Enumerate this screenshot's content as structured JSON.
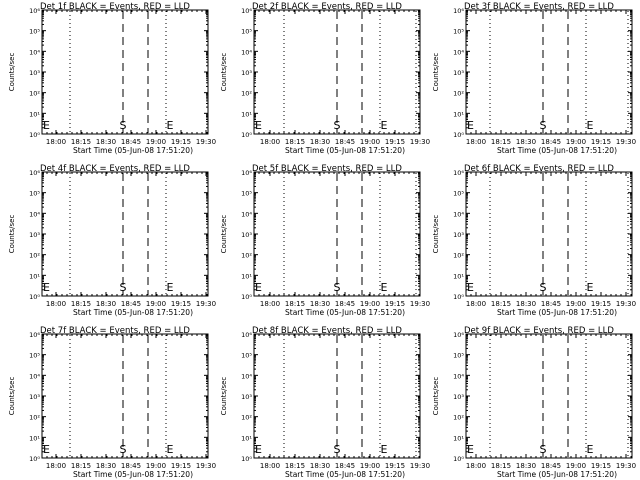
{
  "colors": {
    "background": "#ffffff",
    "foreground": "#000000"
  },
  "panels": [
    {
      "title": "Det 1f BLACK = Events, RED = LLD",
      "xlabel": "Start Time (05-Jun-08 17:51:20)",
      "ylabel": "Counts/sec"
    },
    {
      "title": "Det 2f BLACK = Events, RED = LLD",
      "xlabel": "Start Time (05-Jun-08 17:51:20)",
      "ylabel": "Counts/sec"
    },
    {
      "title": "Det 3f BLACK = Events, RED = LLD",
      "xlabel": "Start Time (05-Jun-08 17:51:20)",
      "ylabel": "Counts/sec"
    },
    {
      "title": "Det 4f BLACK = Events, RED = LLD",
      "xlabel": "Start Time (05-Jun-08 17:51:20)",
      "ylabel": "Counts/sec"
    },
    {
      "title": "Det 5f BLACK = Events, RED = LLD",
      "xlabel": "Start Time (05-Jun-08 17:51:20)",
      "ylabel": "Counts/sec"
    },
    {
      "title": "Det 6f BLACK = Events, RED = LLD",
      "xlabel": "Start Time (05-Jun-08 17:51:20)",
      "ylabel": "Counts/sec"
    },
    {
      "title": "Det 7f BLACK = Events, RED = LLD",
      "xlabel": "Start Time (05-Jun-08 17:51:20)",
      "ylabel": "Counts/sec"
    },
    {
      "title": "Det 8f BLACK = Events, RED = LLD",
      "xlabel": "Start Time (05-Jun-08 17:51:20)",
      "ylabel": "Counts/sec"
    },
    {
      "title": "Det 9f BLACK = Events, RED = LLD",
      "xlabel": "Start Time (05-Jun-08 17:51:20)",
      "ylabel": "Counts/sec"
    }
  ],
  "chart_data": {
    "type": "line",
    "layout": "3x3 small multiples",
    "x_axis": {
      "unit": "minutes after 17:51:20",
      "range": [
        0,
        40
      ],
      "ticks": [
        {
          "label": "18:00",
          "value": 8.67
        },
        {
          "label": "18:15",
          "value": 23.67
        },
        {
          "label": "18:30",
          "value": 38.67
        },
        {
          "label": "18:45",
          "value": 53.67
        },
        {
          "label": "19:00",
          "value": 68.67
        },
        {
          "label": "19:15",
          "value": 83.67
        },
        {
          "label": "19:30",
          "value": 98.67
        }
      ]
    },
    "y_axis": {
      "scale": "log",
      "range_exponent": [
        0,
        6
      ],
      "tick_labels": [
        "10⁰",
        "10¹",
        "10²",
        "10³",
        "10⁴",
        "10⁵",
        "10⁶"
      ]
    },
    "markers": [
      {
        "label": "S",
        "style": "dashed"
      },
      {
        "label": "E",
        "style": "dotted"
      }
    ],
    "series": []
  }
}
